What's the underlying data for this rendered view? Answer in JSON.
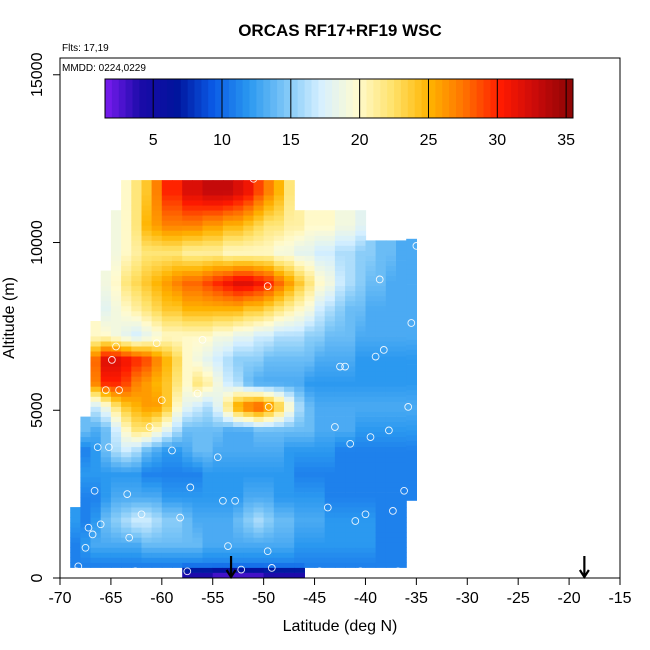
{
  "chart_data": {
    "type": "heatmap",
    "title": "ORCAS RF17+RF19 WSC",
    "xlabel": "Latitude (deg N)",
    "ylabel": "Altitude (m)",
    "xlim": [
      -70,
      -15
    ],
    "ylim": [
      0,
      15500
    ],
    "xticks": [
      -70,
      -65,
      -60,
      -55,
      -50,
      -45,
      -40,
      -35,
      -30,
      -25,
      -20,
      -15
    ],
    "yticks": [
      0,
      5000,
      10000,
      15000
    ],
    "annotations": [
      "Flts: 17,19",
      "MMDD: 0224,0229"
    ],
    "colorbar": {
      "range": [
        1.5,
        35.5
      ],
      "ticks": [
        5,
        10,
        15,
        20,
        25,
        30,
        35
      ],
      "colors": [
        "#7a1cf0",
        "#1a0aa8",
        "#00149c",
        "#0a5ae6",
        "#2a98f0",
        "#7cc6f7",
        "#d6f0ff",
        "#fffbd0",
        "#ffe26a",
        "#ffb400",
        "#ff7000",
        "#ff1a00",
        "#c80a0a",
        "#8a0404"
      ]
    },
    "latitudes": [
      -68.5,
      -67.5,
      -66.5,
      -65.5,
      -64.5,
      -63.5,
      -62.5,
      -61.5,
      -60.5,
      -59.5,
      -58.5,
      -57.5,
      -56.5,
      -55.5,
      -54.5,
      -53.5,
      -52.5,
      -51.5,
      -50.5,
      -49.5,
      -48.5,
      -47.5,
      -46.5,
      -45.5,
      -44.5,
      -43.5,
      -42.5,
      -41.5,
      -40.5,
      -39.5,
      -38.5,
      -37.5,
      -36.5,
      -35.5
    ],
    "layers": [
      {
        "alt": 11500,
        "w": [
          null,
          null,
          null,
          null,
          null,
          20,
          22,
          24,
          27,
          30,
          30,
          32,
          32,
          33,
          33,
          33,
          32,
          31,
          29,
          27,
          25,
          22,
          null,
          null,
          null,
          null,
          null,
          null,
          null,
          null,
          null,
          null,
          null,
          null
        ]
      },
      {
        "alt": 10500,
        "w": [
          null,
          null,
          null,
          null,
          19,
          20,
          22,
          25,
          26,
          27,
          27,
          27,
          27,
          26,
          26,
          25,
          25,
          24,
          23,
          22,
          22,
          21,
          21,
          20,
          20,
          20,
          19,
          19,
          18,
          null,
          null,
          null,
          null,
          null
        ]
      },
      {
        "alt": 9700,
        "w": [
          null,
          null,
          null,
          null,
          19,
          20,
          21,
          22,
          22,
          22,
          22,
          21,
          21,
          21,
          21,
          20,
          20,
          20,
          20,
          20,
          19,
          19,
          18,
          18,
          17,
          17,
          16,
          16,
          15,
          15,
          14,
          14,
          13,
          13
        ]
      },
      {
        "alt": 8800,
        "w": [
          null,
          null,
          null,
          19,
          20,
          22,
          23,
          24,
          25,
          26,
          27,
          28,
          28,
          29,
          30,
          31,
          32,
          32,
          31,
          30,
          28,
          26,
          24,
          22,
          20,
          19,
          17,
          16,
          15,
          14,
          14,
          13,
          13,
          13
        ]
      },
      {
        "alt": 8000,
        "w": [
          null,
          null,
          null,
          18,
          19,
          20,
          21,
          22,
          23,
          24,
          24,
          25,
          25,
          25,
          25,
          25,
          25,
          24,
          24,
          23,
          22,
          21,
          20,
          19,
          17,
          16,
          15,
          14,
          14,
          13,
          13,
          13,
          13,
          13
        ]
      },
      {
        "alt": 7200,
        "w": [
          null,
          null,
          20,
          20,
          19,
          18,
          17,
          18,
          19,
          20,
          20,
          20,
          20,
          20,
          19,
          19,
          18,
          18,
          17,
          17,
          16,
          16,
          16,
          15,
          15,
          14,
          14,
          14,
          13,
          13,
          13,
          13,
          13,
          13
        ]
      },
      {
        "alt": 6500,
        "w": [
          null,
          null,
          28,
          32,
          32,
          31,
          30,
          29,
          27,
          25,
          23,
          20,
          19,
          18,
          17,
          16,
          15,
          15,
          15,
          14,
          14,
          14,
          14,
          14,
          13,
          13,
          13,
          13,
          12,
          12,
          12,
          12,
          12,
          12
        ]
      },
      {
        "alt": 5800,
        "w": [
          null,
          null,
          27,
          30,
          30,
          29,
          27,
          26,
          25,
          24,
          22,
          20,
          22,
          21,
          19,
          17,
          16,
          14,
          13,
          13,
          13,
          13,
          13,
          12,
          12,
          12,
          12,
          12,
          12,
          12,
          12,
          12,
          12,
          12
        ]
      },
      {
        "alt": 5100,
        "w": [
          null,
          null,
          17,
          19,
          22,
          24,
          25,
          26,
          26,
          24,
          20,
          18,
          17,
          16,
          18,
          22,
          26,
          28,
          29,
          27,
          24,
          20,
          16,
          14,
          13,
          13,
          13,
          13,
          13,
          13,
          13,
          13,
          13,
          13
        ]
      },
      {
        "alt": 4400,
        "w": [
          null,
          14,
          13,
          14,
          17,
          20,
          22,
          22,
          20,
          18,
          16,
          14,
          14,
          14,
          14,
          13,
          13,
          13,
          14,
          14,
          14,
          14,
          14,
          14,
          13,
          13,
          13,
          13,
          12,
          12,
          12,
          12,
          12,
          12
        ]
      },
      {
        "alt": 3800,
        "w": [
          null,
          11,
          12,
          14,
          16,
          17,
          16,
          14,
          13,
          12,
          12,
          13,
          14,
          14,
          13,
          13,
          13,
          13,
          13,
          13,
          13,
          12,
          12,
          12,
          12,
          12,
          11,
          11,
          11,
          11,
          11,
          11,
          11,
          11
        ]
      },
      {
        "alt": 3100,
        "w": [
          null,
          12,
          12,
          12,
          12,
          12,
          12,
          11,
          11,
          11,
          11,
          11,
          11,
          12,
          12,
          12,
          12,
          12,
          12,
          12,
          12,
          12,
          11,
          11,
          11,
          11,
          11,
          11,
          11,
          11,
          11,
          11,
          11,
          11
        ]
      },
      {
        "alt": 2400,
        "w": [
          null,
          11,
          11,
          12,
          13,
          13,
          13,
          13,
          13,
          12,
          12,
          12,
          12,
          12,
          12,
          12,
          12,
          13,
          13,
          13,
          12,
          12,
          12,
          12,
          12,
          11,
          11,
          11,
          11,
          11,
          11,
          11,
          11,
          11
        ]
      },
      {
        "alt": 1700,
        "w": [
          12,
          11,
          12,
          14,
          15,
          16,
          17,
          17,
          16,
          15,
          15,
          14,
          13,
          13,
          13,
          13,
          14,
          15,
          16,
          15,
          14,
          14,
          13,
          13,
          13,
          12,
          12,
          12,
          12,
          12,
          11,
          11,
          11,
          null
        ]
      },
      {
        "alt": 1000,
        "w": [
          11,
          12,
          13,
          13,
          13,
          13,
          13,
          14,
          14,
          14,
          14,
          14,
          14,
          13,
          13,
          13,
          13,
          13,
          13,
          13,
          13,
          13,
          12,
          12,
          12,
          12,
          12,
          12,
          12,
          12,
          11,
          11,
          11,
          null
        ]
      },
      {
        "alt": 400,
        "w": [
          11,
          11,
          11,
          11,
          11,
          11,
          11,
          11,
          11,
          11,
          11,
          11,
          11,
          11,
          11,
          11,
          11,
          11,
          11,
          11,
          11,
          11,
          11,
          11,
          11,
          11,
          11,
          11,
          11,
          11,
          11,
          11,
          11,
          null
        ]
      },
      {
        "alt": 100,
        "w": [
          null,
          null,
          null,
          null,
          null,
          null,
          null,
          null,
          null,
          null,
          null,
          4,
          4,
          4,
          3,
          3,
          3,
          3,
          3,
          4,
          4,
          4,
          4,
          null,
          null,
          null,
          null,
          null,
          null,
          null,
          null,
          null,
          null,
          null
        ]
      }
    ],
    "points": [
      {
        "lat": -68.4,
        "alt": 200
      },
      {
        "lat": -68.2,
        "alt": 350
      },
      {
        "lat": -67.5,
        "alt": 900
      },
      {
        "lat": -67.2,
        "alt": 1500
      },
      {
        "lat": -66.8,
        "alt": 1300
      },
      {
        "lat": -66.2,
        "alt": 150
      },
      {
        "lat": -66.0,
        "alt": 1600
      },
      {
        "lat": -66.6,
        "alt": 2600
      },
      {
        "lat": -66.3,
        "alt": 3900
      },
      {
        "lat": -65.2,
        "alt": 3900
      },
      {
        "lat": -65.5,
        "alt": 5600
      },
      {
        "lat": -64.9,
        "alt": 6500
      },
      {
        "lat": -64.5,
        "alt": 6900
      },
      {
        "lat": -64.2,
        "alt": 5600
      },
      {
        "lat": -63.2,
        "alt": 1200
      },
      {
        "lat": -63.4,
        "alt": 2500
      },
      {
        "lat": -62.0,
        "alt": 1900
      },
      {
        "lat": -62.6,
        "alt": 200
      },
      {
        "lat": -61.2,
        "alt": 4500
      },
      {
        "lat": -60.5,
        "alt": 7000
      },
      {
        "lat": -60.0,
        "alt": 5300
      },
      {
        "lat": -59.0,
        "alt": 3800
      },
      {
        "lat": -58.2,
        "alt": 1800
      },
      {
        "lat": -57.5,
        "alt": 200
      },
      {
        "lat": -57.2,
        "alt": 2700
      },
      {
        "lat": -56.0,
        "alt": 7100
      },
      {
        "lat": -56.5,
        "alt": 5500
      },
      {
        "lat": -54.5,
        "alt": 3600
      },
      {
        "lat": -54.0,
        "alt": 2300
      },
      {
        "lat": -53.5,
        "alt": 950
      },
      {
        "lat": -52.8,
        "alt": 2300
      },
      {
        "lat": -52.2,
        "alt": 250
      },
      {
        "lat": -51.0,
        "alt": 11900
      },
      {
        "lat": -49.6,
        "alt": 8700
      },
      {
        "lat": -49.5,
        "alt": 5100
      },
      {
        "lat": -49.6,
        "alt": 800
      },
      {
        "lat": -49.2,
        "alt": 300
      },
      {
        "lat": -44.5,
        "alt": 200
      },
      {
        "lat": -43.7,
        "alt": 2100
      },
      {
        "lat": -43.0,
        "alt": 4500
      },
      {
        "lat": -42.5,
        "alt": 6300
      },
      {
        "lat": -42.0,
        "alt": 6300
      },
      {
        "lat": -41.5,
        "alt": 4000
      },
      {
        "lat": -41.0,
        "alt": 1700
      },
      {
        "lat": -40.5,
        "alt": 200
      },
      {
        "lat": -40.0,
        "alt": 1900
      },
      {
        "lat": -39.5,
        "alt": 4200
      },
      {
        "lat": -39.0,
        "alt": 6600
      },
      {
        "lat": -38.6,
        "alt": 8900
      },
      {
        "lat": -38.2,
        "alt": 6800
      },
      {
        "lat": -37.7,
        "alt": 4400
      },
      {
        "lat": -37.3,
        "alt": 2000
      },
      {
        "lat": -36.8,
        "alt": 200
      },
      {
        "lat": -36.2,
        "alt": 2600
      },
      {
        "lat": -35.8,
        "alt": 5100
      },
      {
        "lat": -35.5,
        "alt": 7600
      },
      {
        "lat": -35.0,
        "alt": 9900
      }
    ],
    "arrows": [
      -53.2,
      -18.5
    ]
  }
}
